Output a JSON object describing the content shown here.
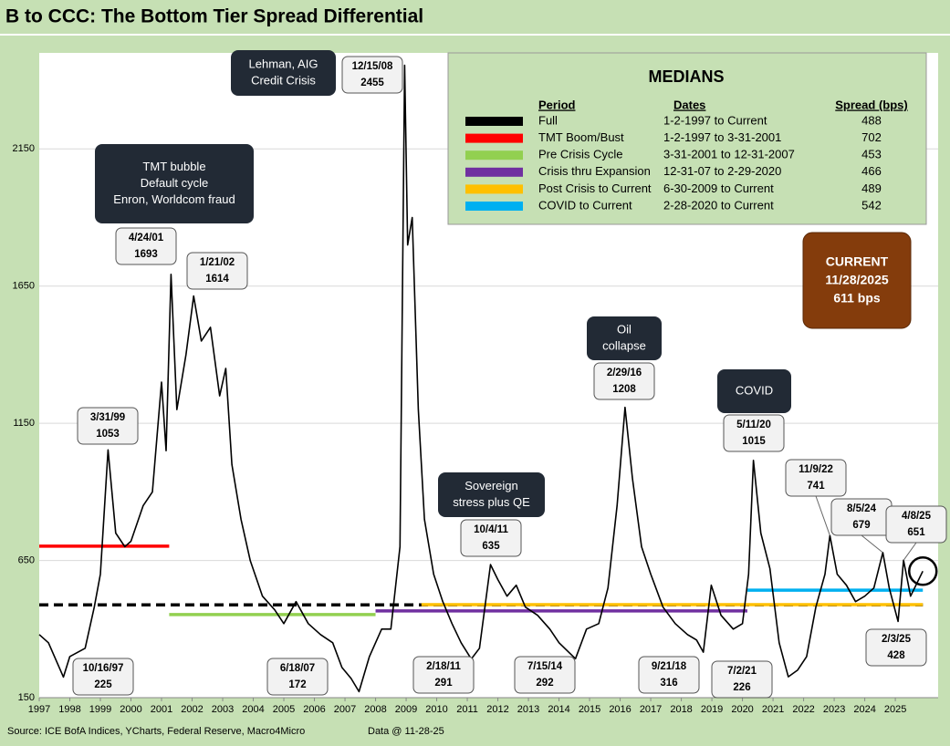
{
  "chart_data": {
    "type": "line",
    "title": "B to CCC: The Bottom Tier Spread Differential",
    "source": "Source: ICE BofA Indices, YCharts, Federal Reserve, Macro4Micro",
    "data_note": "Data @ 11-28-25",
    "xlim": [
      1997,
      2026.4
    ],
    "xticks": [
      1997,
      1998,
      1999,
      2000,
      2001,
      2002,
      2003,
      2004,
      2005,
      2006,
      2007,
      2008,
      2009,
      2010,
      2011,
      2012,
      2013,
      2014,
      2015,
      2016,
      2017,
      2018,
      2019,
      2020,
      2021,
      2022,
      2023,
      2024,
      2025
    ],
    "ylim": [
      150,
      2500
    ],
    "yticks": [
      150,
      650,
      1150,
      1650,
      2150
    ],
    "grid": true,
    "series": [
      {
        "color": "#000000",
        "x": [
          1997.0,
          1997.3,
          1997.79,
          1998.0,
          1998.5,
          1998.8,
          1999.0,
          1999.25,
          1999.5,
          1999.8,
          2000.0,
          2000.4,
          2000.7,
          2001.0,
          2001.15,
          2001.31,
          2001.5,
          2001.8,
          2002.05,
          2002.3,
          2002.6,
          2002.9,
          2003.1,
          2003.3,
          2003.6,
          2003.9,
          2004.3,
          2004.7,
          2005.0,
          2005.4,
          2005.8,
          2006.2,
          2006.6,
          2006.9,
          2007.2,
          2007.46,
          2007.8,
          2008.2,
          2008.5,
          2008.8,
          2008.95,
          2009.05,
          2009.2,
          2009.4,
          2009.6,
          2009.9,
          2010.2,
          2010.5,
          2010.8,
          2011.13,
          2011.4,
          2011.76,
          2012.0,
          2012.3,
          2012.6,
          2012.9,
          2013.3,
          2013.7,
          2014.0,
          2014.54,
          2014.9,
          2015.3,
          2015.6,
          2015.9,
          2016.16,
          2016.4,
          2016.7,
          2017.0,
          2017.4,
          2017.8,
          2018.2,
          2018.5,
          2018.72,
          2018.98,
          2019.3,
          2019.7,
          2020.0,
          2020.2,
          2020.36,
          2020.6,
          2020.9,
          2021.2,
          2021.5,
          2021.8,
          2022.1,
          2022.4,
          2022.7,
          2022.86,
          2023.1,
          2023.4,
          2023.7,
          2024.0,
          2024.3,
          2024.59,
          2024.8,
          2025.09,
          2025.27,
          2025.5,
          2025.9
        ],
        "values": [
          380,
          350,
          225,
          300,
          330,
          480,
          600,
          1053,
          750,
          700,
          720,
          850,
          900,
          1300,
          1050,
          1693,
          1200,
          1400,
          1614,
          1450,
          1500,
          1250,
          1350,
          1000,
          800,
          650,
          520,
          470,
          420,
          500,
          420,
          380,
          350,
          260,
          220,
          172,
          300,
          400,
          400,
          700,
          2455,
          1800,
          1900,
          1200,
          800,
          600,
          500,
          420,
          350,
          291,
          330,
          635,
          580,
          520,
          560,
          480,
          450,
          400,
          350,
          292,
          400,
          420,
          550,
          850,
          1208,
          950,
          700,
          600,
          480,
          420,
          380,
          360,
          316,
          560,
          450,
          400,
          420,
          600,
          1015,
          750,
          620,
          350,
          226,
          250,
          300,
          480,
          600,
          741,
          600,
          560,
          500,
          520,
          550,
          679,
          550,
          428,
          651,
          520,
          611
        ]
      }
    ],
    "point_labels": [
      {
        "label": "10/16/97",
        "value": 225,
        "x": 1997.79
      },
      {
        "label": "3/31/99",
        "value": 1053,
        "x": 1999.25
      },
      {
        "label": "4/24/01",
        "value": 1693,
        "x": 2001.31
      },
      {
        "label": "1/21/02",
        "value": 1614,
        "x": 2002.05
      },
      {
        "label": "12/15/08",
        "value": 2455,
        "x": 2008.95
      },
      {
        "label": "6/18/07",
        "value": 172,
        "x": 2007.46
      },
      {
        "label": "2/18/11",
        "value": 291,
        "x": 2011.13
      },
      {
        "label": "10/4/11",
        "value": 635,
        "x": 2011.76
      },
      {
        "label": "7/15/14",
        "value": 292,
        "x": 2014.54
      },
      {
        "label": "2/29/16",
        "value": 1208,
        "x": 2016.16
      },
      {
        "label": "9/21/18",
        "value": 316,
        "x": 2018.72
      },
      {
        "label": "5/11/20",
        "value": 1015,
        "x": 2020.36
      },
      {
        "label": "7/2/21",
        "value": 226,
        "x": 2021.5
      },
      {
        "label": "11/9/22",
        "value": 741,
        "x": 2022.86
      },
      {
        "label": "8/5/24",
        "value": 679,
        "x": 2024.59
      },
      {
        "label": "2/3/25",
        "value": 428,
        "x": 2025.09
      },
      {
        "label": "4/8/25",
        "value": 651,
        "x": 2025.27
      }
    ],
    "annotations": [
      {
        "lines": [
          "Lehman, AIG",
          "Credit Crisis"
        ]
      },
      {
        "lines": [
          "TMT bubble",
          "Default cycle",
          "Enron, Worldcom fraud"
        ]
      },
      {
        "lines": [
          "Sovereign",
          "stress plus QE"
        ]
      },
      {
        "lines": [
          "Oil",
          "collapse"
        ]
      },
      {
        "lines": [
          "COVID"
        ]
      }
    ],
    "current": [
      "CURRENT",
      "11/28/2025",
      "611 bps"
    ],
    "medians_title": "MEDIANS",
    "medians_headers": [
      "Period",
      "Dates",
      "Spread (bps)"
    ],
    "medians": [
      {
        "period": "Full",
        "dates": "1-2-1997 to Current",
        "spread": 488,
        "color": "#000000",
        "x_range": [
          1997.0,
          2025.9
        ],
        "dashed": true
      },
      {
        "period": "TMT Boom/Bust",
        "dates": "1-2-1997  to 3-31-2001",
        "spread": 702,
        "color": "#ff0000",
        "x_range": [
          1997.0,
          2001.25
        ]
      },
      {
        "period": "Pre Crisis Cycle",
        "dates": "3-31-2001  to 12-31-2007",
        "spread": 453,
        "color": "#92d050",
        "x_range": [
          2001.25,
          2008.0
        ]
      },
      {
        "period": "Crisis thru Expansion",
        "dates": "12-31-07 to 2-29-2020",
        "spread": 466,
        "color": "#7030a0",
        "x_range": [
          2008.0,
          2020.16
        ]
      },
      {
        "period": "Post Crisis to Current",
        "dates": "6-30-2009  to Current",
        "spread": 489,
        "color": "#ffc000",
        "x_range": [
          2009.5,
          2025.9
        ]
      },
      {
        "period": "COVID to Current",
        "dates": " 2-28-2020  to Current",
        "spread": 542,
        "color": "#00b0f0",
        "x_range": [
          2020.16,
          2025.9
        ]
      }
    ]
  }
}
